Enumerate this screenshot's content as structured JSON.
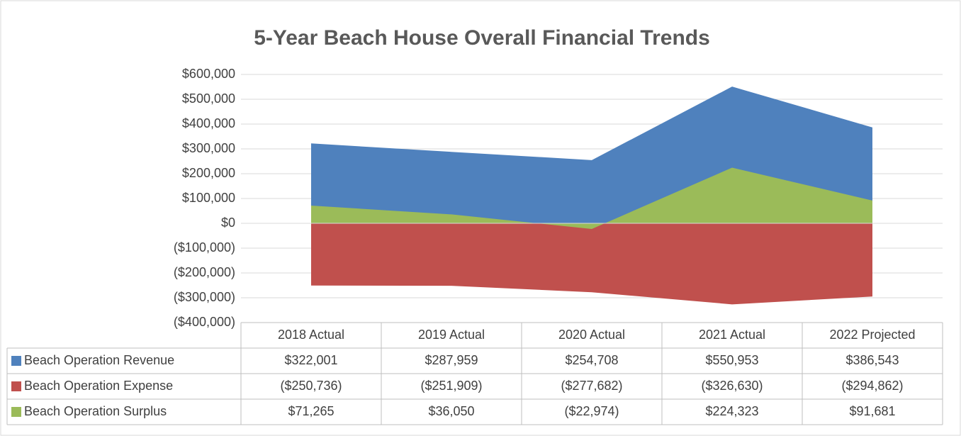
{
  "chart_data": {
    "type": "area",
    "title": "5-Year Beach House Overall Financial Trends",
    "categories": [
      "2018 Actual",
      "2019 Actual",
      "2020 Actual",
      "2021 Actual",
      "2022 Projected"
    ],
    "series": [
      {
        "name": "Beach Operation Revenue",
        "color": "#4f81bd",
        "values": [
          322001,
          287959,
          254708,
          550953,
          386543
        ],
        "value_labels": [
          "$322,001",
          "$287,959",
          "$254,708",
          "$550,953",
          "$386,543"
        ]
      },
      {
        "name": "Beach Operation Expense",
        "color": "#c0504d",
        "values": [
          -250736,
          -251909,
          -277682,
          -326630,
          -294862
        ],
        "value_labels": [
          "($250,736)",
          "($251,909)",
          "($277,682)",
          "($326,630)",
          "($294,862)"
        ]
      },
      {
        "name": "Beach Operation Surplus",
        "color": "#9bbb59",
        "values": [
          71265,
          36050,
          -22974,
          224323,
          91681
        ],
        "value_labels": [
          "$71,265",
          "$36,050",
          "($22,974)",
          "$224,323",
          "$91,681"
        ]
      }
    ],
    "ylim": [
      -400000,
      600000
    ],
    "yticks": [
      {
        "value": -400000,
        "label": "($400,000)"
      },
      {
        "value": -300000,
        "label": "($300,000)"
      },
      {
        "value": -200000,
        "label": "($200,000)"
      },
      {
        "value": -100000,
        "label": "($100,000)"
      },
      {
        "value": 0,
        "label": "$0"
      },
      {
        "value": 100000,
        "label": "$100,000"
      },
      {
        "value": 200000,
        "label": "$200,000"
      },
      {
        "value": 300000,
        "label": "$300,000"
      },
      {
        "value": 400000,
        "label": "$400,000"
      },
      {
        "value": 500000,
        "label": "$500,000"
      },
      {
        "value": 600000,
        "label": "$600,000"
      }
    ],
    "grid": true
  }
}
